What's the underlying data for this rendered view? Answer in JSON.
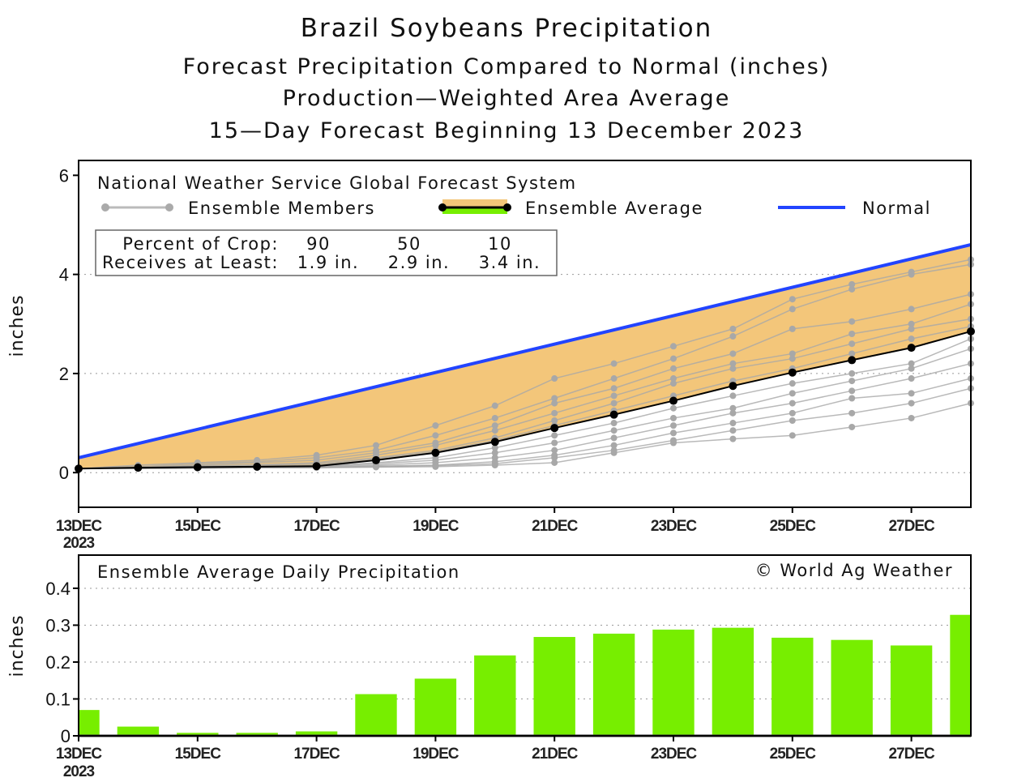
{
  "chart_data": [
    {
      "type": "line",
      "title": "Brazil Soybeans Precipitation",
      "subtitles": [
        "Forecast Precipitation Compared to Normal (inches)",
        "Production—Weighted Area Average",
        "15—Day Forecast Beginning 13 December 2023"
      ],
      "source_label": "National Weather Service Global Forecast System",
      "legend": {
        "members": "Ensemble Members",
        "average": "Ensemble Average",
        "normal": "Normal"
      },
      "crop_table": {
        "row1_label": "Percent of Crop:",
        "row2_label": "Receives at Least:",
        "percents": [
          "90",
          "50",
          "10"
        ],
        "amounts": [
          "1.9 in.",
          "2.9 in.",
          "3.4 in."
        ]
      },
      "ylabel": "inches",
      "ylim": [
        -0.7,
        6.3
      ],
      "yticks": [
        "0",
        "2",
        "4",
        "6"
      ],
      "x_days": [
        13,
        14,
        15,
        16,
        17,
        18,
        19,
        20,
        21,
        22,
        23,
        24,
        25,
        26,
        27,
        28
      ],
      "xticks": [
        "13DEC",
        "15DEC",
        "17DEC",
        "19DEC",
        "21DEC",
        "23DEC",
        "25DEC",
        "27DEC"
      ],
      "xtick_year": "2023",
      "normal": [
        0.3,
        4.6
      ],
      "ensemble_average": [
        0.08,
        0.1,
        0.11,
        0.12,
        0.13,
        0.25,
        0.4,
        0.62,
        0.9,
        1.17,
        1.45,
        1.75,
        2.02,
        2.27,
        2.52,
        2.85
      ],
      "ensemble_members": [
        [
          0.08,
          0.15,
          0.2,
          0.25,
          0.35,
          0.55,
          0.95,
          1.35,
          1.9,
          2.2,
          2.55,
          2.9,
          3.5,
          3.8,
          4.05,
          4.3
        ],
        [
          0.08,
          0.12,
          0.18,
          0.22,
          0.3,
          0.45,
          0.75,
          1.1,
          1.5,
          1.9,
          2.3,
          2.75,
          3.3,
          3.7,
          4.0,
          4.2
        ],
        [
          0.08,
          0.1,
          0.15,
          0.2,
          0.25,
          0.4,
          0.6,
          0.95,
          1.4,
          1.7,
          2.1,
          2.4,
          2.9,
          3.05,
          3.3,
          3.6
        ],
        [
          0.08,
          0.1,
          0.13,
          0.16,
          0.2,
          0.35,
          0.55,
          0.85,
          1.2,
          1.55,
          1.9,
          2.2,
          2.4,
          2.8,
          3.0,
          3.4
        ],
        [
          0.08,
          0.1,
          0.12,
          0.14,
          0.18,
          0.3,
          0.45,
          0.7,
          1.05,
          1.4,
          1.8,
          2.1,
          2.3,
          2.6,
          2.9,
          3.1
        ],
        [
          0.08,
          0.1,
          0.11,
          0.12,
          0.15,
          0.28,
          0.42,
          0.65,
          0.95,
          1.25,
          1.55,
          1.85,
          2.1,
          2.4,
          2.7,
          2.95
        ],
        [
          0.08,
          0.09,
          0.1,
          0.11,
          0.12,
          0.2,
          0.3,
          0.5,
          0.75,
          1.0,
          1.3,
          1.55,
          1.8,
          2.0,
          2.2,
          2.7
        ],
        [
          0.08,
          0.09,
          0.1,
          0.11,
          0.12,
          0.18,
          0.25,
          0.4,
          0.6,
          0.85,
          1.1,
          1.3,
          1.6,
          1.85,
          2.1,
          2.5
        ],
        [
          0.08,
          0.09,
          0.1,
          0.1,
          0.11,
          0.15,
          0.2,
          0.3,
          0.45,
          0.7,
          0.95,
          1.2,
          1.4,
          1.65,
          1.9,
          2.2
        ],
        [
          0.08,
          0.09,
          0.1,
          0.1,
          0.1,
          0.13,
          0.15,
          0.22,
          0.35,
          0.55,
          0.8,
          1.0,
          1.2,
          1.5,
          1.6,
          1.9
        ],
        [
          0.08,
          0.08,
          0.09,
          0.1,
          0.1,
          0.12,
          0.14,
          0.18,
          0.3,
          0.45,
          0.65,
          0.85,
          1.05,
          1.2,
          1.4,
          1.7
        ],
        [
          0.08,
          0.08,
          0.09,
          0.1,
          0.1,
          0.11,
          0.12,
          0.15,
          0.2,
          0.4,
          0.6,
          0.68,
          0.75,
          0.92,
          1.1,
          1.4
        ]
      ],
      "colors": {
        "normal": "#2244ff",
        "fill": "#f3c67a",
        "members": "#a8a8a8",
        "average": "#000000",
        "avg_legend_fill": "#77ee00"
      }
    },
    {
      "type": "bar",
      "title": "Ensemble Average Daily Precipitation",
      "copyright": "© World Ag Weather",
      "ylabel": "inches",
      "ylim": [
        0,
        0.49
      ],
      "yticks": [
        "0",
        "0.1",
        "0.2",
        "0.3",
        "0.4"
      ],
      "x_days": [
        13,
        14,
        15,
        16,
        17,
        18,
        19,
        20,
        21,
        22,
        23,
        24,
        25,
        26,
        27,
        28
      ],
      "values": [
        0.07,
        0.025,
        0.008,
        0.008,
        0.012,
        0.113,
        0.155,
        0.218,
        0.268,
        0.277,
        0.288,
        0.293,
        0.266,
        0.26,
        0.245,
        0.328
      ],
      "xticks": [
        "13DEC",
        "15DEC",
        "17DEC",
        "19DEC",
        "21DEC",
        "23DEC",
        "25DEC",
        "27DEC"
      ],
      "xtick_year": "2023",
      "colors": {
        "bar": "#77ee00"
      }
    }
  ]
}
